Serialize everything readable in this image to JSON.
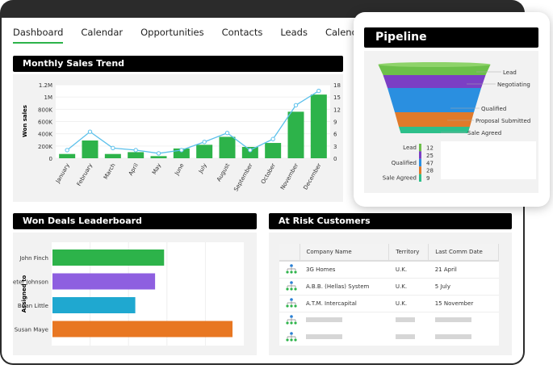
{
  "tabs": [
    "Dashboard",
    "Calendar",
    "Opportunities",
    "Contacts",
    "Leads",
    "Calendar list"
  ],
  "active_tab": "Dashboard",
  "sales": {
    "title": "Monthly Sales Trend",
    "chart_data": {
      "type": "bar+line",
      "categories": [
        "January",
        "February",
        "March",
        "April",
        "May",
        "June",
        "July",
        "August",
        "September",
        "October",
        "November",
        "December"
      ],
      "series": [
        {
          "name": "Won sales",
          "type": "bar",
          "axis": "left",
          "values": [
            70000,
            290000,
            70000,
            100000,
            35000,
            160000,
            220000,
            350000,
            185000,
            250000,
            760000,
            1040000
          ],
          "color": "#2db34a"
        },
        {
          "type": "line",
          "axis": "right",
          "values": [
            2,
            6.5,
            2.5,
            2,
            1.2,
            2,
            4,
            6.2,
            2,
            4.7,
            13,
            16.5
          ],
          "color": "#5bc0eb"
        }
      ],
      "ylabel": "Won sales",
      "ylim": [
        0,
        1200000
      ],
      "y_ticks": [
        "0",
        "200K",
        "400K",
        "600K",
        "800K",
        "1M",
        "1.2M"
      ],
      "y2lim": [
        0,
        18
      ],
      "y2_ticks": [
        "0",
        "3",
        "6",
        "9",
        "12",
        "15",
        "18"
      ],
      "grid": true
    }
  },
  "leaderboard": {
    "title": "Won Deals Leaderboard",
    "ylabel": "Assigned to",
    "chart_data": {
      "type": "bar",
      "orientation": "horizontal",
      "categories": [
        "John Finch",
        "Peter Johnson",
        "Brian Little",
        "Susan Maye"
      ],
      "values": [
        0.62,
        0.57,
        0.46,
        1.0
      ],
      "colors": [
        "#2db34a",
        "#8e5fe0",
        "#1fa8d0",
        "#e87722"
      ]
    }
  },
  "risk": {
    "title": "At Risk Customers",
    "columns": [
      "Company Name",
      "Territory",
      "Last Comm Date"
    ],
    "rows": [
      [
        "3G Homes",
        "U.K.",
        "21 April"
      ],
      [
        "A.B.B. (Hellas) System",
        "U.K.",
        "5 July"
      ],
      [
        "A.T.M. Intercapital",
        "U.K.",
        "15 November"
      ]
    ],
    "placeholder_rows": 2
  },
  "pipeline": {
    "title": "Pipeline",
    "chart_data": {
      "type": "funnel",
      "stages": [
        "Lead",
        "Negotiating",
        "Qualified",
        "Proposal Submitted",
        "Sale Agreed"
      ],
      "values": [
        12,
        25,
        47,
        28,
        9
      ],
      "colors": [
        "#6cc04a",
        "#7b3fc4",
        "#2a8fe0",
        "#e07a2a",
        "#2dbf8a"
      ]
    },
    "table_labels": [
      "Lead",
      "",
      "Qualified",
      "",
      "Sale Agreed"
    ]
  }
}
